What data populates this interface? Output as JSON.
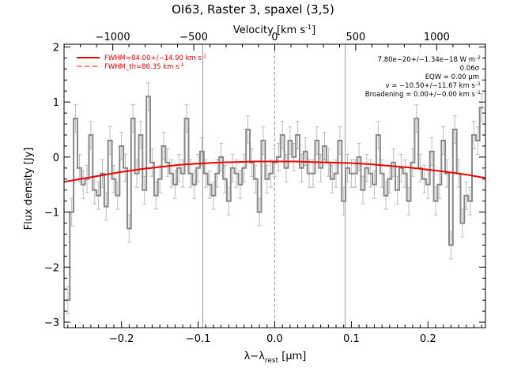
{
  "chart_data": {
    "type": "line",
    "title": "OI63, Raster 3, spaxel (3,5)",
    "top_axis_label": "Velocity [km s",
    "top_axis_label_sup": "-1",
    "top_axis_label_end": "]",
    "xlabel_main": "λ−λ",
    "xlabel_sub": "rest",
    "xlabel_unit": " [μm]",
    "ylabel": "Flux density [Jy]",
    "xlim": [
      -0.275,
      0.275
    ],
    "ylim": [
      -3.1,
      2.05
    ],
    "x_ticks": [
      -0.2,
      -0.1,
      0.0,
      0.1,
      0.2
    ],
    "x_tick_labels": [
      "−0.2",
      "−0.1",
      "0.0",
      "0.1",
      "0.2"
    ],
    "y_ticks": [
      -3,
      -2,
      -1,
      0,
      1,
      2
    ],
    "y_tick_labels": [
      "−3",
      "−2",
      "−1",
      "0",
      "1",
      "2"
    ],
    "top_ticks_kms": [
      -1000,
      -500,
      0,
      500,
      1000
    ],
    "top_tick_labels": [
      "−1000",
      "−500",
      "0",
      "500",
      "1000"
    ],
    "top_axis_kms_per_micron": 4730,
    "vertical_lines_x": [
      -0.094,
      0.0,
      0.092
    ],
    "legend": [
      {
        "label": "FWHM=84.00+/−14.90 km s",
        "sup": "-1",
        "style": "solid",
        "color": "#ee0000"
      },
      {
        "label": "FWHM_th=86.35 km s",
        "sup": "-1",
        "style": "dashed",
        "color": "#ee0000"
      }
    ],
    "annotations": [
      {
        "text": "7.80e−20+/−1.34e−18 W m",
        "sup": "-2"
      },
      {
        "text": "0.06σ",
        "sup": ""
      },
      {
        "text": "EQW = 0.00 μm",
        "sup": ""
      },
      {
        "text": "v = −10.50+/−11.67 km s",
        "sup": "-1"
      },
      {
        "text": "Broadening = 0.00+/−0.00 km s",
        "sup": "-1"
      }
    ],
    "colors": {
      "data": "#888888",
      "error": "#bbbbbb",
      "fit": "#ee0000",
      "vline": "#999999"
    },
    "series": [
      {
        "name": "Data (step)",
        "x": [
          -0.27,
          -0.265,
          -0.26,
          -0.255,
          -0.25,
          -0.245,
          -0.24,
          -0.235,
          -0.23,
          -0.225,
          -0.22,
          -0.215,
          -0.21,
          -0.205,
          -0.2,
          -0.195,
          -0.19,
          -0.185,
          -0.18,
          -0.175,
          -0.17,
          -0.165,
          -0.16,
          -0.155,
          -0.15,
          -0.145,
          -0.14,
          -0.135,
          -0.13,
          -0.125,
          -0.12,
          -0.115,
          -0.11,
          -0.105,
          -0.1,
          -0.095,
          -0.09,
          -0.085,
          -0.08,
          -0.075,
          -0.07,
          -0.065,
          -0.06,
          -0.055,
          -0.05,
          -0.045,
          -0.04,
          -0.035,
          -0.03,
          -0.025,
          -0.02,
          -0.015,
          -0.01,
          -0.005,
          0.0,
          0.005,
          0.01,
          0.015,
          0.02,
          0.025,
          0.03,
          0.035,
          0.04,
          0.045,
          0.05,
          0.055,
          0.06,
          0.065,
          0.07,
          0.075,
          0.08,
          0.085,
          0.09,
          0.095,
          0.1,
          0.105,
          0.11,
          0.115,
          0.12,
          0.125,
          0.13,
          0.135,
          0.14,
          0.145,
          0.15,
          0.155,
          0.16,
          0.165,
          0.17,
          0.175,
          0.18,
          0.185,
          0.19,
          0.195,
          0.2,
          0.205,
          0.21,
          0.215,
          0.22,
          0.225,
          0.23,
          0.235,
          0.24,
          0.245,
          0.25,
          0.255,
          0.26,
          0.265,
          0.27
        ],
        "y": [
          -2.6,
          -1.0,
          0.7,
          -0.2,
          -0.5,
          -0.4,
          0.4,
          -0.6,
          -0.7,
          -0.3,
          -0.9,
          0.3,
          -0.4,
          -0.7,
          0.2,
          -0.2,
          -1.3,
          0.7,
          -0.3,
          0.4,
          -0.6,
          1.1,
          -0.1,
          -0.7,
          -0.4,
          0.2,
          -0.1,
          -0.3,
          -0.5,
          -0.2,
          -0.3,
          0.7,
          -0.3,
          -0.5,
          -0.2,
          0.1,
          -0.3,
          -0.5,
          -0.7,
          -0.3,
          0.0,
          -0.4,
          -0.8,
          -0.2,
          -0.3,
          -0.5,
          -0.2,
          0.5,
          -0.1,
          -0.4,
          -1.0,
          0.3,
          -0.4,
          -0.3,
          -0.1,
          0.0,
          0.4,
          -0.2,
          0.3,
          0.0,
          0.4,
          -0.2,
          0.1,
          -0.3,
          -0.3,
          0.3,
          -0.2,
          0.2,
          -0.1,
          -0.4,
          -0.3,
          0.3,
          -0.8,
          -0.2,
          -0.3,
          -0.3,
          0.0,
          -0.6,
          -0.2,
          -0.3,
          -0.5,
          0.4,
          -0.3,
          -0.7,
          -0.4,
          -0.1,
          -0.6,
          -0.2,
          -0.3,
          -0.8,
          -0.1,
          0.7,
          -0.2,
          -0.4,
          -0.5,
          0.1,
          -0.8,
          -0.5,
          0.3,
          -0.3,
          -1.6,
          0.5,
          -0.3,
          -1.2,
          -0.7,
          -0.8,
          0.4,
          0.3,
          0.9
        ],
        "err": [
          0.25,
          0.25,
          0.25,
          0.25,
          0.25,
          0.25,
          0.25,
          0.25,
          0.25,
          0.25,
          0.25,
          0.25,
          0.25,
          0.25,
          0.25,
          0.25,
          0.25,
          0.25,
          0.25,
          0.25,
          0.25,
          0.25,
          0.25,
          0.25,
          0.25,
          0.25,
          0.25,
          0.25,
          0.25,
          0.25,
          0.25,
          0.25,
          0.25,
          0.25,
          0.25,
          0.25,
          0.25,
          0.25,
          0.25,
          0.25,
          0.25,
          0.25,
          0.25,
          0.25,
          0.25,
          0.25,
          0.25,
          0.25,
          0.25,
          0.25,
          0.25,
          0.25,
          0.25,
          0.25,
          0.25,
          0.25,
          0.25,
          0.25,
          0.25,
          0.25,
          0.25,
          0.25,
          0.25,
          0.25,
          0.25,
          0.25,
          0.25,
          0.25,
          0.25,
          0.25,
          0.25,
          0.25,
          0.25,
          0.25,
          0.25,
          0.25,
          0.25,
          0.25,
          0.25,
          0.25,
          0.25,
          0.25,
          0.25,
          0.25,
          0.25,
          0.25,
          0.25,
          0.25,
          0.25,
          0.25,
          0.25,
          0.25,
          0.25,
          0.25,
          0.25,
          0.25,
          0.25,
          0.25,
          0.25,
          0.25,
          0.25,
          0.25,
          0.25,
          0.25,
          0.25,
          0.25,
          0.25,
          0.25,
          0.25
        ]
      },
      {
        "name": "Fit",
        "x": [
          -0.275,
          -0.25,
          -0.225,
          -0.2,
          -0.175,
          -0.15,
          -0.125,
          -0.1,
          -0.075,
          -0.05,
          -0.025,
          0.0,
          0.025,
          0.05,
          0.075,
          0.1,
          0.125,
          0.15,
          0.175,
          0.2,
          0.225,
          0.25,
          0.275
        ],
        "y": [
          -0.45,
          -0.39,
          -0.33,
          -0.27,
          -0.22,
          -0.18,
          -0.14,
          -0.12,
          -0.1,
          -0.09,
          -0.08,
          -0.08,
          -0.08,
          -0.09,
          -0.1,
          -0.11,
          -0.13,
          -0.16,
          -0.19,
          -0.23,
          -0.27,
          -0.32,
          -0.38
        ]
      }
    ]
  }
}
